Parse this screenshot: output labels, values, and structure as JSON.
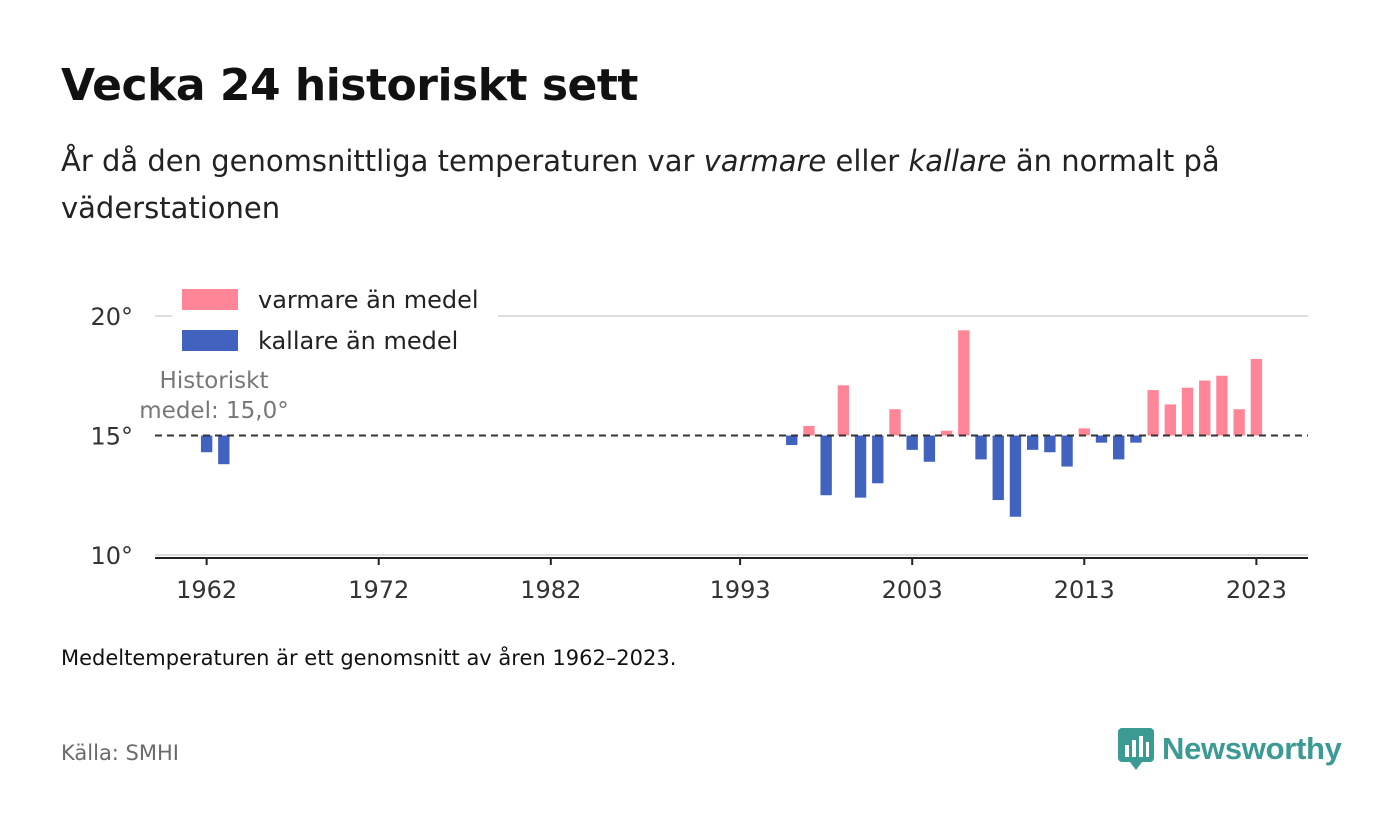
{
  "header": {
    "title": "Vecka 24 historiskt sett",
    "subtitle_part1": "År då den genomsnittliga temperaturen var ",
    "subtitle_em1": "varmare",
    "subtitle_part2": " eller ",
    "subtitle_em2": "kallare",
    "subtitle_part3": " än normalt på väderstationen"
  },
  "footer": {
    "note": "Medeltemperaturen är ett genomsnitt av åren 1962–2023.",
    "source": "Källa: SMHI",
    "brand": "Newsworthy"
  },
  "colors": {
    "warmer": "#ff8597",
    "colder": "#4262c0",
    "brand": "#3c9a94"
  },
  "icons": {
    "logo": "newsworthy-logo-icon"
  },
  "chart_data": {
    "type": "bar",
    "baseline": 15.0,
    "baseline_label_line1": "Historiskt",
    "baseline_label_line2": "medel: 15,0°",
    "ylim": [
      10,
      20
    ],
    "yticks": [
      10,
      15,
      20
    ],
    "ytick_labels": [
      "10°",
      "15°",
      "20°"
    ],
    "xlim": [
      1959,
      2026
    ],
    "xticks": [
      1962,
      1972,
      1982,
      1993,
      2003,
      2013,
      2023
    ],
    "xtick_labels": [
      "1962",
      "1972",
      "1982",
      "1993",
      "2003",
      "2013",
      "2023"
    ],
    "grid": true,
    "legend_position": "top-left",
    "legend": [
      {
        "label": "varmare än medel",
        "color": "#ff8597"
      },
      {
        "label": "kallare än medel",
        "color": "#4262c0"
      }
    ],
    "x": [
      1962,
      1963,
      1996,
      1997,
      1998,
      1999,
      2000,
      2001,
      2002,
      2003,
      2004,
      2005,
      2006,
      2007,
      2008,
      2009,
      2010,
      2011,
      2012,
      2013,
      2014,
      2015,
      2016,
      2017,
      2018,
      2019,
      2020,
      2021,
      2022,
      2023
    ],
    "values": [
      14.3,
      13.8,
      14.6,
      15.4,
      12.5,
      17.1,
      12.4,
      13.0,
      16.1,
      14.4,
      13.9,
      15.2,
      19.4,
      14.0,
      12.3,
      11.6,
      14.4,
      14.3,
      13.7,
      15.3,
      14.7,
      14.0,
      14.7,
      16.9,
      16.3,
      17.0,
      17.3,
      17.5,
      16.1,
      18.2
    ]
  }
}
